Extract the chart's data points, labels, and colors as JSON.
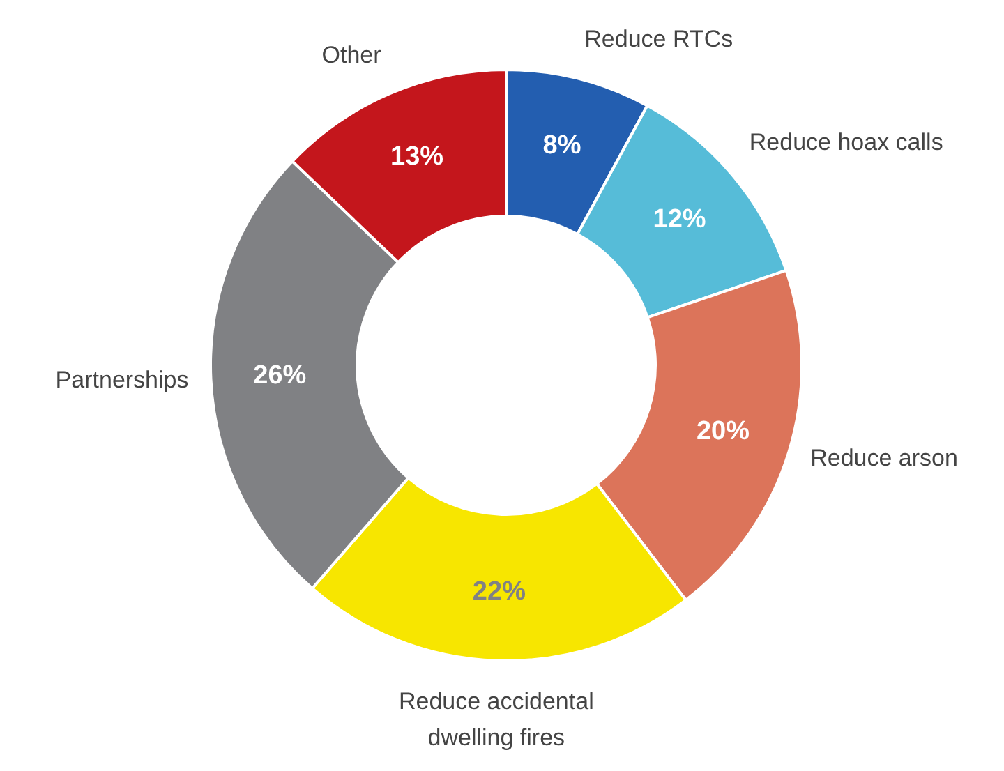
{
  "chart_data": {
    "type": "donut",
    "categories": [
      "Reduce RTCs",
      "Reduce hoax calls",
      "Reduce arson",
      "Reduce accidental\ndwelling fires",
      "Partnerships",
      "Other"
    ],
    "values": [
      8,
      12,
      20,
      22,
      26,
      13
    ],
    "value_labels": [
      "8%",
      "12%",
      "20%",
      "22%",
      "26%",
      "13%"
    ],
    "colors": [
      "#235eb0",
      "#56bcd8",
      "#dc745a",
      "#f7e600",
      "#808184",
      "#c4161c"
    ],
    "legend": false
  }
}
